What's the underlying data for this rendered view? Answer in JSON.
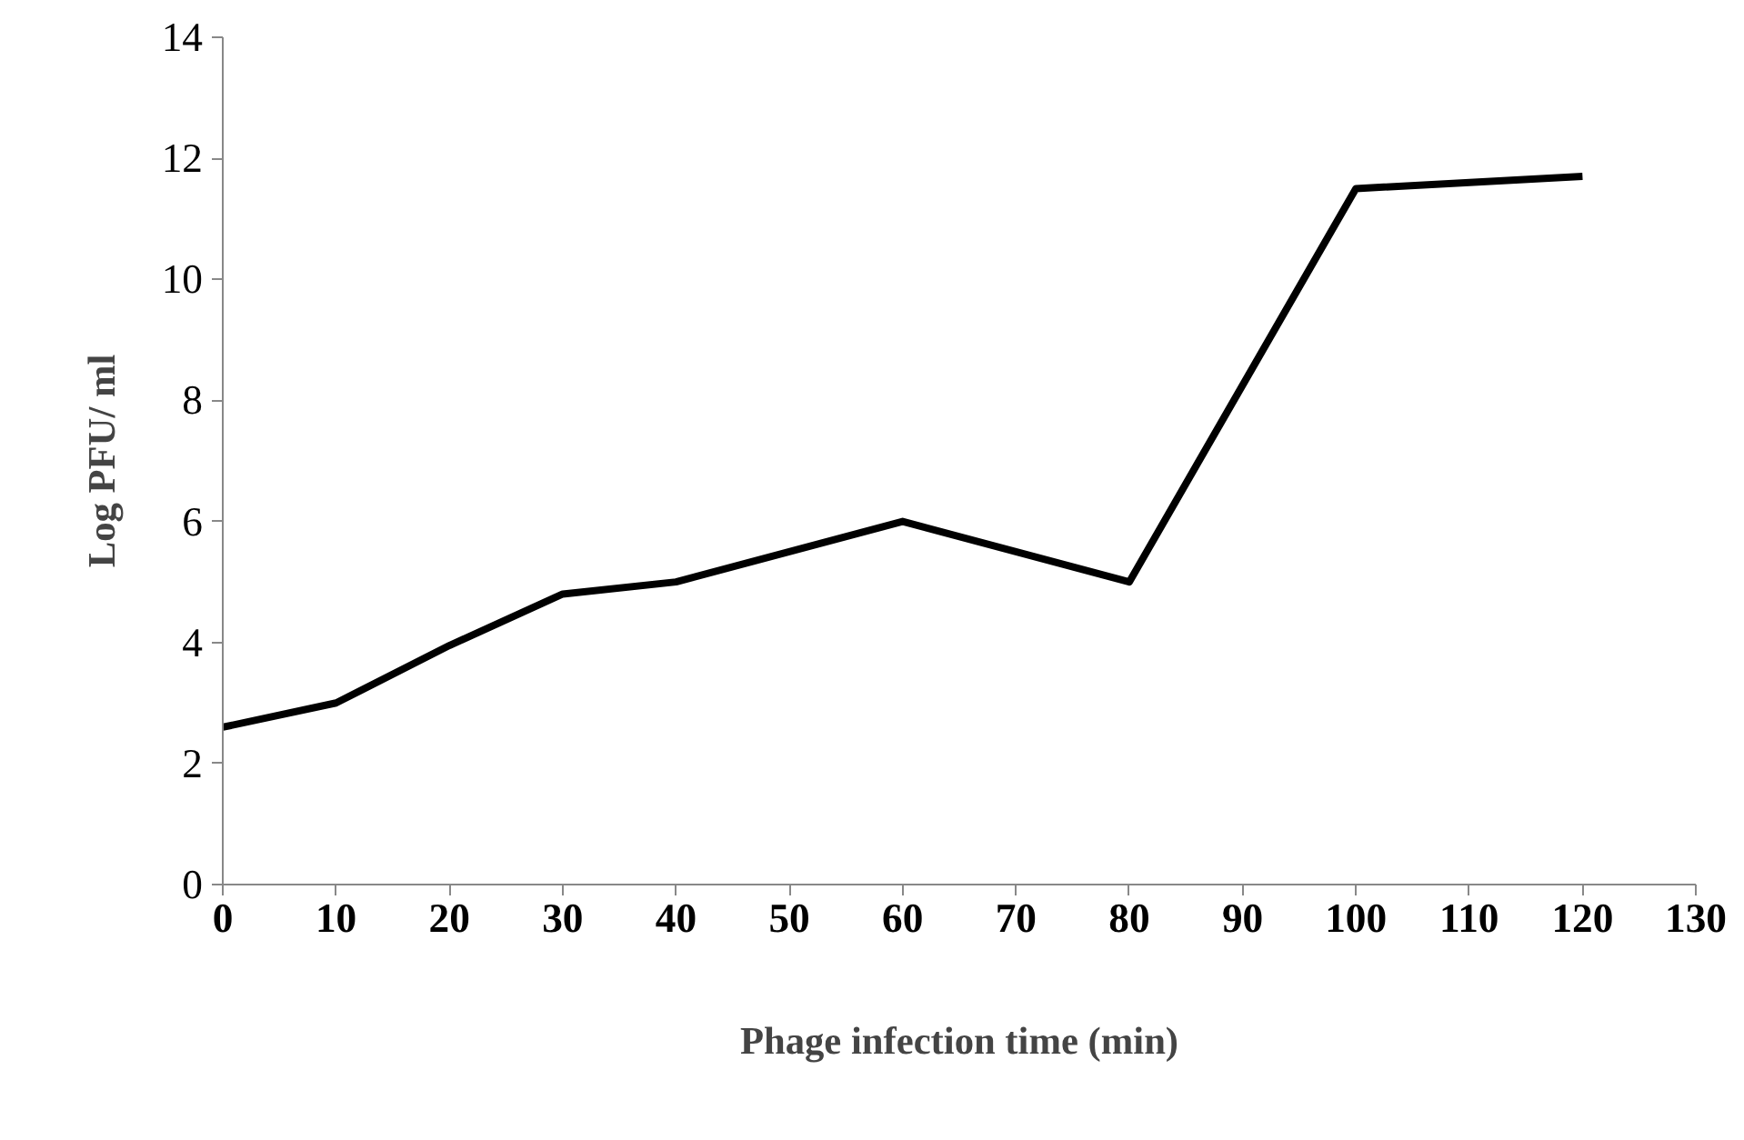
{
  "chart_data": {
    "type": "line",
    "xlabel": "Phage infection time (min)",
    "ylabel": "Log PFU/ ml",
    "x": [
      0,
      10,
      20,
      30,
      40,
      60,
      80,
      100,
      120
    ],
    "series": [
      {
        "color": "#000000",
        "values": [
          2.6,
          3.0,
          3.95,
          4.8,
          5.0,
          6.0,
          5.0,
          11.5,
          11.7
        ]
      }
    ],
    "xlim": [
      0,
      130
    ],
    "ylim": [
      0,
      14
    ],
    "xticks": [
      0,
      10,
      20,
      30,
      40,
      50,
      60,
      70,
      80,
      90,
      100,
      110,
      120,
      130
    ],
    "yticks": [
      0,
      2,
      4,
      6,
      8,
      10,
      12,
      14
    ]
  }
}
